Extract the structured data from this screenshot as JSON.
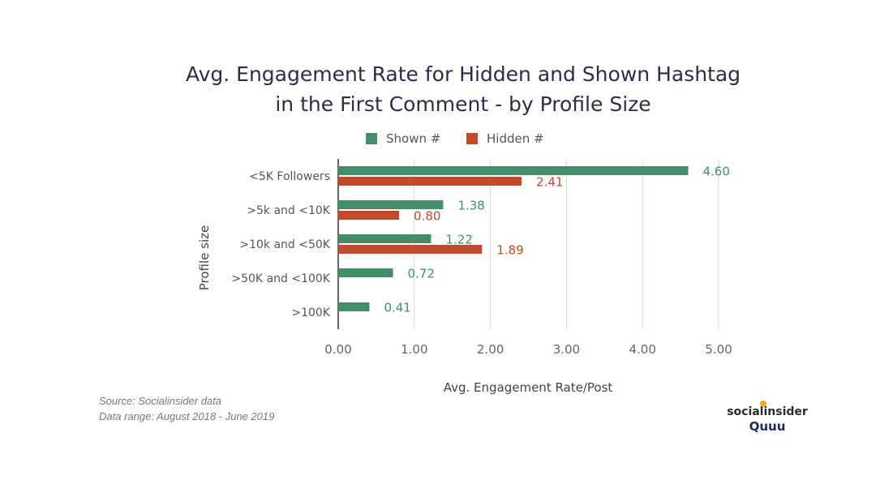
{
  "chart_data": {
    "type": "bar",
    "orientation": "horizontal",
    "title_lines": [
      "Avg. Engagement Rate for Hidden and Shown Hashtag",
      "in the First Comment - by Profile Size"
    ],
    "xlabel": "Avg. Engagement Rate/Post",
    "ylabel": "Profile size",
    "xlim": [
      0,
      5
    ],
    "xticks": [
      "0.00",
      "1.00",
      "2.00",
      "3.00",
      "4.00",
      "5.00"
    ],
    "grid": true,
    "legend_position": "top",
    "categories": [
      "<5K Followers",
      ">5k and <10K",
      ">10k and <50K",
      ">50K and <100K",
      ">100K"
    ],
    "series": [
      {
        "name": "Shown #",
        "color": "#408f6a",
        "values": [
          4.6,
          1.38,
          1.22,
          0.72,
          0.41
        ],
        "labels": [
          "4.60",
          "1.38",
          "1.22",
          "0.72",
          "0.41"
        ]
      },
      {
        "name": "Hidden #",
        "color": "#bf4a2c",
        "values": [
          2.41,
          0.8,
          1.89,
          null,
          null
        ],
        "labels": [
          "2.41",
          "0.80",
          "1.89",
          null,
          null
        ]
      }
    ]
  },
  "footer": {
    "source": "Source: Socialinsider data",
    "range": "Data range: August 2018 - June 2019"
  },
  "brand": {
    "line1": "socialinsider",
    "line2": "Quuu",
    "dot_color": "#f4a91f"
  }
}
